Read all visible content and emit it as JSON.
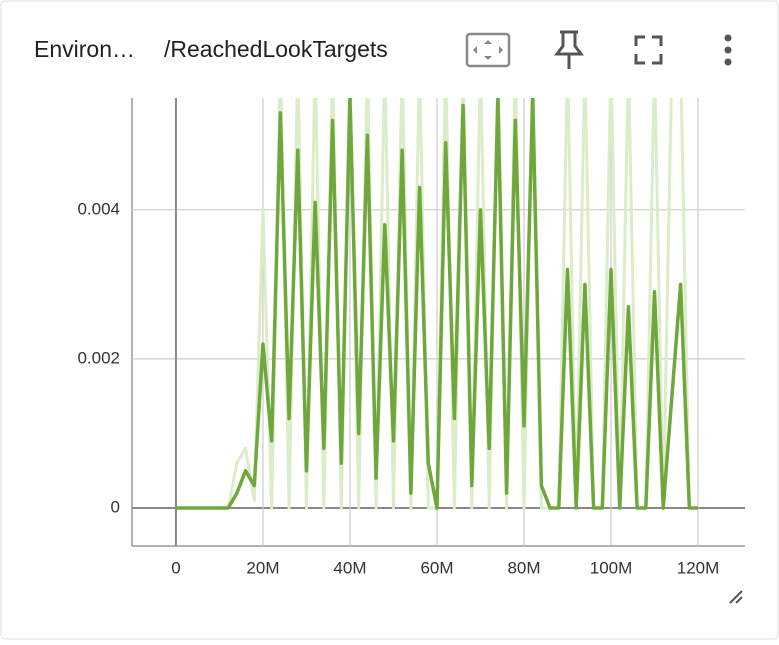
{
  "card": {
    "title_prefix": "Environ…",
    "title": "/ReachedLookTargets"
  },
  "chart_data": {
    "type": "line",
    "x": [
      0,
      2000000,
      4000000,
      6000000,
      8000000,
      10000000,
      12000000,
      14000000,
      16000000,
      18000000,
      20000000,
      22000000,
      24000000,
      26000000,
      28000000,
      30000000,
      32000000,
      34000000,
      36000000,
      38000000,
      40000000,
      42000000,
      44000000,
      46000000,
      48000000,
      50000000,
      52000000,
      54000000,
      56000000,
      58000000,
      60000000,
      62000000,
      64000000,
      66000000,
      68000000,
      70000000,
      72000000,
      74000000,
      76000000,
      78000000,
      80000000,
      82000000,
      84000000,
      86000000,
      88000000,
      90000000,
      92000000,
      94000000,
      96000000,
      98000000,
      100000000,
      102000000,
      104000000,
      106000000,
      108000000,
      110000000,
      112000000,
      114000000,
      116000000,
      118000000,
      120000000
    ],
    "series": [
      {
        "color": "#dcecc9",
        "values": [
          0,
          0,
          0,
          0,
          0,
          0,
          0,
          0.0006,
          0.0008,
          0.0001,
          0.004,
          0,
          0.006,
          0,
          0.006,
          0,
          0.006,
          0,
          0.006,
          0,
          0.006,
          0,
          0.006,
          0,
          0.006,
          0,
          0.006,
          0,
          0.006,
          0,
          0,
          0.006,
          0,
          0.006,
          0,
          0.006,
          0,
          0.006,
          0,
          0.006,
          0,
          0.006,
          0,
          0,
          0,
          0.006,
          0,
          0.006,
          0,
          0,
          0.006,
          0,
          0.006,
          0,
          0,
          0.006,
          0,
          0.006,
          0.006,
          0,
          0
        ]
      },
      {
        "color": "#6fa73c",
        "values": [
          0,
          0,
          0,
          0,
          0,
          0,
          0,
          0.0002,
          0.0005,
          0.0003,
          0.0022,
          0.0009,
          0.0053,
          0.0012,
          0.0048,
          0.0005,
          0.0041,
          0.0008,
          0.0052,
          0.0006,
          0.0055,
          0.001,
          0.005,
          0.0004,
          0.0038,
          0.0009,
          0.0048,
          0.0002,
          0.0043,
          0.0006,
          0,
          0.0049,
          0.0012,
          0.0054,
          0.0003,
          0.004,
          0.0008,
          0.0055,
          0.0002,
          0.0052,
          0.0011,
          0.0055,
          0.0003,
          0,
          0,
          0.0032,
          0,
          0.003,
          0,
          0,
          0.0032,
          0,
          0.0027,
          0,
          0,
          0.0029,
          0,
          0.0015,
          0.003,
          0,
          0
        ]
      }
    ],
    "xlim": [
      -10100000,
      130800000
    ],
    "xticks": [
      {
        "value": 0,
        "label": "0"
      },
      {
        "value": 20000000,
        "label": "20M"
      },
      {
        "value": 40000000,
        "label": "40M"
      },
      {
        "value": 60000000,
        "label": "60M"
      },
      {
        "value": 80000000,
        "label": "80M"
      },
      {
        "value": 100000000,
        "label": "100M"
      },
      {
        "value": 120000000,
        "label": "120M"
      }
    ],
    "ylim": [
      -0.00051,
      0.0055
    ],
    "yticks": [
      0,
      0.002,
      0.004
    ],
    "grid": true
  }
}
